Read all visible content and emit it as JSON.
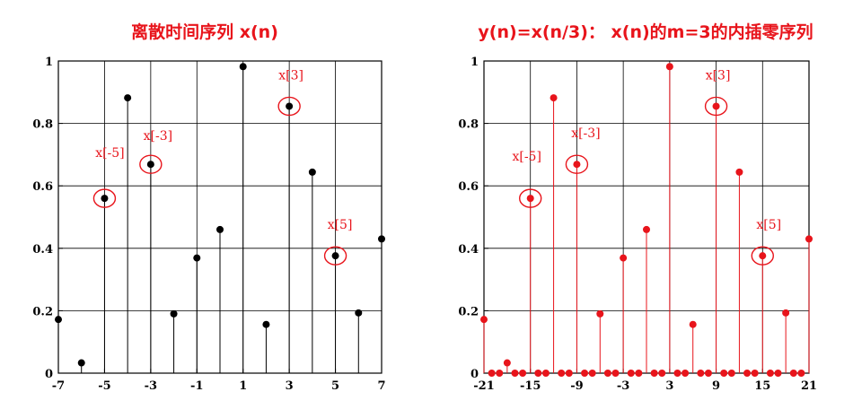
{
  "colors": {
    "accent": "#e8141b",
    "ink": "#000000",
    "grid": "#000000"
  },
  "chart_data": [
    {
      "type": "stem",
      "title": "离散时间序列 x(n)",
      "xlabel": "",
      "ylabel": "",
      "xlim": [
        -7,
        7
      ],
      "ylim": [
        0,
        1
      ],
      "grid": true,
      "xticks": [
        -7,
        -5,
        -3,
        -1,
        1,
        3,
        5,
        7
      ],
      "xtick_labels": [
        "-7",
        "-5",
        "-3",
        "-1",
        "1",
        "3",
        "5",
        "7"
      ],
      "yticks": [
        0,
        0.2,
        0.4,
        0.6,
        0.8,
        1
      ],
      "ytick_labels": [
        "0",
        "0.2",
        "0.4",
        "0.6",
        "0.8",
        "1"
      ],
      "x": [
        -7,
        -6,
        -5,
        -4,
        -3,
        -2,
        -1,
        0,
        1,
        2,
        3,
        4,
        5,
        6,
        7
      ],
      "y": [
        0.172,
        0.033,
        0.56,
        0.882,
        0.669,
        0.19,
        0.369,
        0.46,
        0.982,
        0.156,
        0.855,
        0.644,
        0.376,
        0.193,
        0.43
      ],
      "annotations": [
        {
          "text": "x[-5]",
          "x": -5,
          "y": 0.56
        },
        {
          "text": "x[-3]",
          "x": -3,
          "y": 0.669
        },
        {
          "text": "x[3]",
          "x": 3,
          "y": 0.855
        },
        {
          "text": "x[5]",
          "x": 5,
          "y": 0.376
        }
      ]
    },
    {
      "type": "stem",
      "title": "y(n)=x(n/3)： x(n)的m=3的内插零序列",
      "xlabel": "",
      "ylabel": "",
      "xlim": [
        -21,
        21
      ],
      "ylim": [
        0,
        1
      ],
      "grid": true,
      "xticks": [
        -21,
        -15,
        -9,
        -3,
        3,
        9,
        15,
        21
      ],
      "xtick_labels": [
        "-21",
        "-15",
        "-9",
        "-3",
        "3",
        "9",
        "15",
        "21"
      ],
      "yticks": [
        0,
        0.2,
        0.4,
        0.6,
        0.8,
        1
      ],
      "ytick_labels": [
        "0",
        "0.2",
        "0.4",
        "0.6",
        "0.8",
        "1"
      ],
      "x": [
        -21,
        -20,
        -19,
        -18,
        -17,
        -16,
        -15,
        -14,
        -13,
        -12,
        -11,
        -10,
        -9,
        -8,
        -7,
        -6,
        -5,
        -4,
        -3,
        -2,
        -1,
        0,
        1,
        2,
        3,
        4,
        5,
        6,
        7,
        8,
        9,
        10,
        11,
        12,
        13,
        14,
        15,
        16,
        17,
        18,
        19,
        20,
        21
      ],
      "y": [
        0.172,
        0,
        0,
        0.033,
        0,
        0,
        0.56,
        0,
        0,
        0.882,
        0,
        0,
        0.669,
        0,
        0,
        0.19,
        0,
        0,
        0.369,
        0,
        0,
        0.46,
        0,
        0,
        0.982,
        0,
        0,
        0.156,
        0,
        0,
        0.855,
        0,
        0,
        0.644,
        0,
        0,
        0.376,
        0,
        0,
        0.193,
        0,
        0,
        0.43
      ],
      "annotations": [
        {
          "text": "x[-5]",
          "x": -15,
          "y": 0.56
        },
        {
          "text": "x[-3]",
          "x": -9,
          "y": 0.669
        },
        {
          "text": "x[3]",
          "x": 9,
          "y": 0.855
        },
        {
          "text": "x[5]",
          "x": 15,
          "y": 0.376
        }
      ]
    }
  ]
}
